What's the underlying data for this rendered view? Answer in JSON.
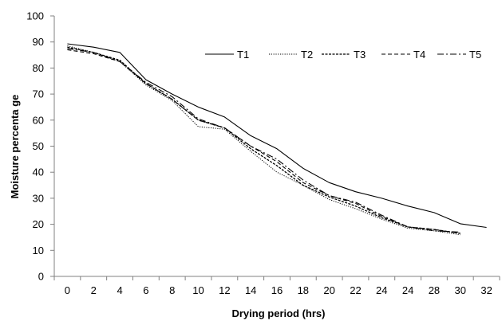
{
  "chart_data": {
    "type": "line",
    "title": "",
    "xlabel": "Drying period (hrs)",
    "ylabel": "Moisture percentage",
    "ylabel_display": "Moisture percenta ge",
    "categories": [
      "0",
      "2",
      "4",
      "6",
      "8",
      "10",
      "12",
      "14",
      "16",
      "18",
      "20",
      "22",
      "24",
      "24",
      "28",
      "30",
      "32"
    ],
    "ylim": [
      0,
      100
    ],
    "yticks": [
      0,
      10,
      20,
      30,
      40,
      50,
      60,
      70,
      80,
      90,
      100
    ],
    "grid": false,
    "legend_position": "top-right",
    "series": [
      {
        "name": "T1",
        "style": "solid",
        "values": [
          89.3,
          88,
          86,
          75.5,
          70,
          65,
          61.2,
          54,
          49,
          41.5,
          36,
          32.5,
          30,
          27,
          24.5,
          20.2,
          18.8
        ]
      },
      {
        "name": "T2",
        "style": "dotted",
        "values": [
          88.5,
          86,
          82.5,
          73.5,
          67.5,
          57.5,
          56.5,
          48,
          40,
          35,
          29.5,
          26,
          22,
          18.5,
          17.5,
          16,
          null
        ]
      },
      {
        "name": "T3",
        "style": "dashed-fine",
        "values": [
          88,
          86,
          83,
          74,
          68,
          60,
          57,
          49,
          42.5,
          35,
          30.5,
          27,
          22.5,
          19,
          18,
          16.5,
          null
        ]
      },
      {
        "name": "T4",
        "style": "dashed",
        "values": [
          87,
          85.5,
          82.5,
          74,
          68,
          60,
          57,
          50,
          44,
          36,
          31,
          28,
          23,
          19,
          18,
          16.5,
          null
        ]
      },
      {
        "name": "T5",
        "style": "dash-dot",
        "values": [
          87.5,
          86,
          82.5,
          74.5,
          69,
          60.5,
          57,
          50,
          45,
          37,
          31,
          28.5,
          23.5,
          19,
          17.5,
          17,
          null
        ]
      }
    ]
  }
}
